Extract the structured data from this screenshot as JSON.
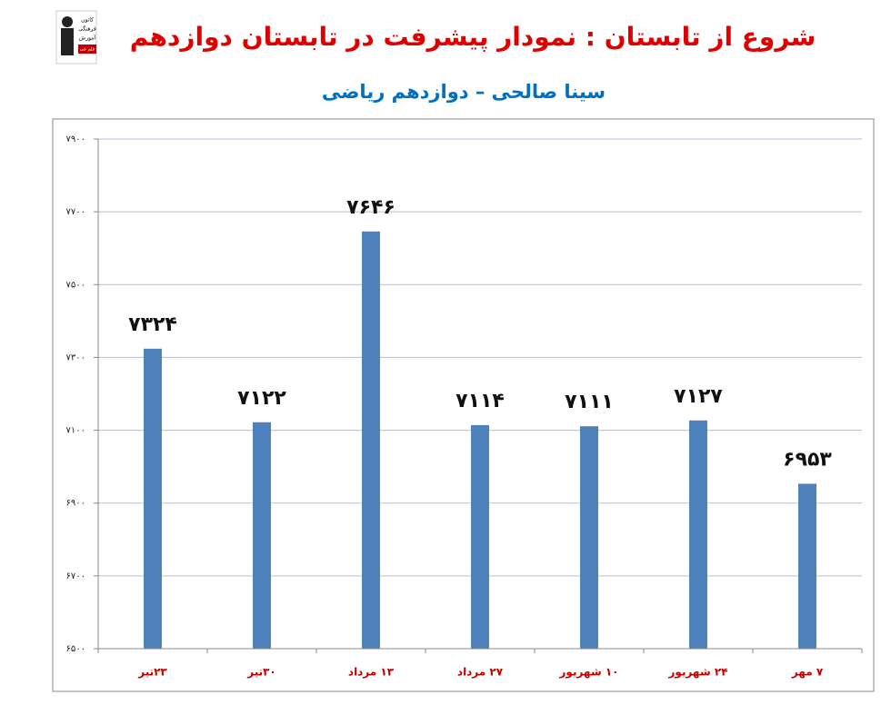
{
  "logo_text": [
    "کانون",
    "فرهنگی",
    "آموزش",
    "قلم چی"
  ],
  "chart_data": {
    "type": "bar",
    "title": "شروع از تابستان : نمودار پیشرفت در تابستان دوازدهم",
    "subtitle": "سینا صالحی – دوازدهم ریاضی",
    "categories": [
      "۲۳تیر",
      "۳۰تیر",
      "۱۳ مرداد",
      "۲۷ مرداد",
      "۱۰ شهریور",
      "۲۴ شهریور",
      "۷ مهر"
    ],
    "values": [
      7324,
      7122,
      7646,
      7114,
      7111,
      7127,
      6953
    ],
    "value_labels": [
      "۷۳۲۴",
      "۷۱۲۲",
      "۷۶۴۶",
      "۷۱۱۴",
      "۷۱۱۱",
      "۷۱۲۷",
      "۶۹۵۳"
    ],
    "color": "#4f81bd",
    "ylim": [
      6500,
      7900
    ],
    "yticks": [
      {
        "value": 6500,
        "label": "۶۵۰۰"
      },
      {
        "value": 6700,
        "label": "۶۷۰۰"
      },
      {
        "value": 6900,
        "label": "۶۹۰۰"
      },
      {
        "value": 7100,
        "label": "۷۱۰۰"
      },
      {
        "value": 7300,
        "label": "۷۳۰۰"
      },
      {
        "value": 7500,
        "label": "۷۵۰۰"
      },
      {
        "value": 7700,
        "label": "۷۷۰۰"
      },
      {
        "value": 7900,
        "label": "۷۹۰۰"
      }
    ],
    "grid": true
  }
}
